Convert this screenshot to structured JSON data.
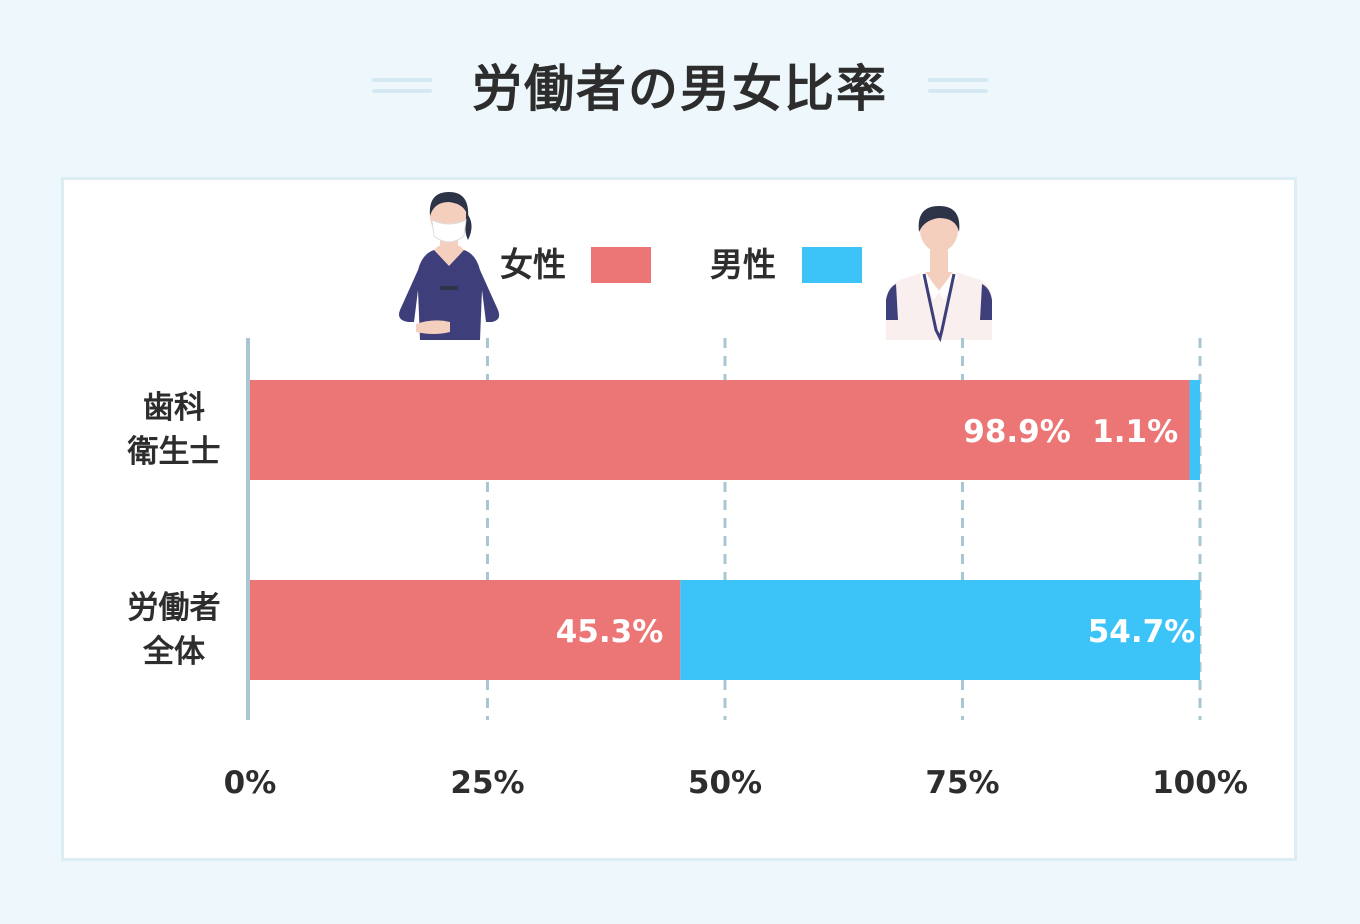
{
  "title": "労働者の男女比率",
  "colors": {
    "female": "#ec7676",
    "male": "#3cc4f9",
    "axis": "#a9c6d3",
    "grid": "#a9c6d3"
  },
  "legend": [
    {
      "label": "女性",
      "color": "#ec7676",
      "icon": "nurse-woman-icon"
    },
    {
      "label": "男性",
      "color": "#3cc4f9",
      "icon": "office-worker-icon"
    }
  ],
  "chart_data": {
    "type": "bar",
    "orientation": "horizontal",
    "stacked": true,
    "categories": [
      {
        "line1": "歯科",
        "line2": "衛生士"
      },
      {
        "line1": "労働者",
        "line2": "全体"
      }
    ],
    "series": [
      {
        "name": "女性",
        "values": [
          98.9,
          45.3
        ],
        "labels": [
          "98.9%",
          "45.3%"
        ]
      },
      {
        "name": "男性",
        "values": [
          1.1,
          54.7
        ],
        "labels": [
          "1.1%",
          "54.7%"
        ]
      }
    ],
    "xlim": [
      0,
      100
    ],
    "xticks": [
      0,
      25,
      50,
      75,
      100
    ],
    "xtick_labels": [
      "0%",
      "25%",
      "50%",
      "75%",
      "100%"
    ],
    "grid": true,
    "legend_position": "top"
  }
}
